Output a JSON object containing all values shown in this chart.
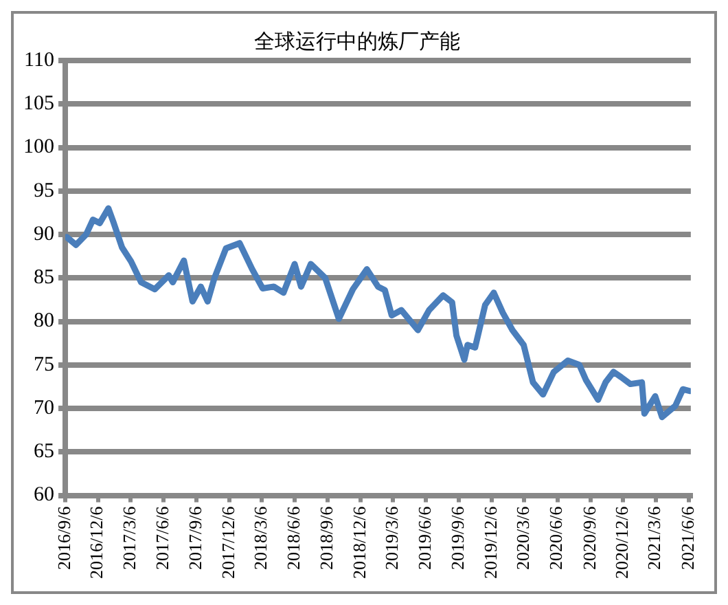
{
  "chart_data": {
    "type": "line",
    "title": "全球运行中的炼厂产能",
    "x": [
      "2016-09-10",
      "2016-10-06",
      "2016-11-03",
      "2016-11-22",
      "2016-12-11",
      "2017-01-04",
      "2017-01-19",
      "2017-02-11",
      "2017-03-08",
      "2017-04-05",
      "2017-05-13",
      "2017-06-21",
      "2017-07-02",
      "2017-08-02",
      "2017-08-26",
      "2017-09-18",
      "2017-10-07",
      "2017-10-26",
      "2017-11-27",
      "2018-01-04",
      "2018-02-08",
      "2018-03-09",
      "2018-04-09",
      "2018-05-06",
      "2018-06-06",
      "2018-06-24",
      "2018-07-21",
      "2018-08-30",
      "2018-10-07",
      "2018-11-15",
      "2018-12-24",
      "2019-01-24",
      "2019-02-12",
      "2019-03-03",
      "2019-03-30",
      "2019-05-15",
      "2019-06-15",
      "2019-07-24",
      "2019-08-18",
      "2019-08-30",
      "2019-09-21",
      "2019-09-30",
      "2019-10-21",
      "2019-11-18",
      "2019-12-12",
      "2020-01-06",
      "2020-02-02",
      "2020-03-04",
      "2020-03-30",
      "2020-04-27",
      "2020-05-27",
      "2020-07-05",
      "2020-08-06",
      "2020-08-24",
      "2020-09-27",
      "2020-10-18",
      "2020-11-09",
      "2020-11-30",
      "2020-12-26",
      "2021-01-27",
      "2021-02-03",
      "2021-03-05",
      "2021-03-24",
      "2021-04-30",
      "2021-05-21",
      "2021-06-09"
    ],
    "series": [
      {
        "color": "#4a7ebb",
        "values": [
          89.7,
          88.8,
          90,
          91.7,
          91.3,
          93,
          91.3,
          88.5,
          86.9,
          84.5,
          83.7,
          85.3,
          84.5,
          87,
          82.3,
          84,
          82.3,
          85,
          88.4,
          89,
          86,
          83.8,
          84,
          83.3,
          86.6,
          84,
          86.6,
          85,
          80.3,
          83.7,
          86,
          84,
          83.6,
          80.7,
          81.3,
          79,
          81.3,
          83,
          82.2,
          78.4,
          75.6,
          77.3,
          77,
          81.9,
          83.3,
          81,
          79,
          77.3,
          73,
          71.6,
          74.2,
          75.5,
          75,
          73.3,
          71,
          73,
          74.2,
          73.6,
          72.8,
          73,
          69.4,
          71.4,
          69,
          70.3,
          72.2,
          72
        ]
      }
    ],
    "xlim": [
      "2016-09-06",
      "2021-06-12"
    ],
    "xticks": [
      {
        "value": "2016-09-06",
        "label": "2016/9/6"
      },
      {
        "value": "2016-12-06",
        "label": "2016/12/6"
      },
      {
        "value": "2017-03-06",
        "label": "2017/3/6"
      },
      {
        "value": "2017-06-06",
        "label": "2017/6/6"
      },
      {
        "value": "2017-09-06",
        "label": "2017/9/6"
      },
      {
        "value": "2017-12-06",
        "label": "2017/12/6"
      },
      {
        "value": "2018-03-06",
        "label": "2018/3/6"
      },
      {
        "value": "2018-06-06",
        "label": "2018/6/6"
      },
      {
        "value": "2018-09-06",
        "label": "2018/9/6"
      },
      {
        "value": "2018-12-06",
        "label": "2018/12/6"
      },
      {
        "value": "2019-03-06",
        "label": "2019/3/6"
      },
      {
        "value": "2019-06-06",
        "label": "2019/6/6"
      },
      {
        "value": "2019-09-06",
        "label": "2019/9/6"
      },
      {
        "value": "2019-12-06",
        "label": "2019/12/6"
      },
      {
        "value": "2020-03-06",
        "label": "2020/3/6"
      },
      {
        "value": "2020-06-06",
        "label": "2020/6/6"
      },
      {
        "value": "2020-09-06",
        "label": "2020/9/6"
      },
      {
        "value": "2020-12-06",
        "label": "2020/12/6"
      },
      {
        "value": "2021-03-06",
        "label": "2021/3/6"
      },
      {
        "value": "2021-06-06",
        "label": "2021/6/6"
      }
    ],
    "ylim": [
      60,
      110
    ],
    "yticks": [
      60,
      65,
      70,
      75,
      80,
      85,
      90,
      95,
      100,
      105,
      110
    ],
    "grid": "y",
    "legend": false,
    "marker": "none",
    "line_style": "solid"
  }
}
